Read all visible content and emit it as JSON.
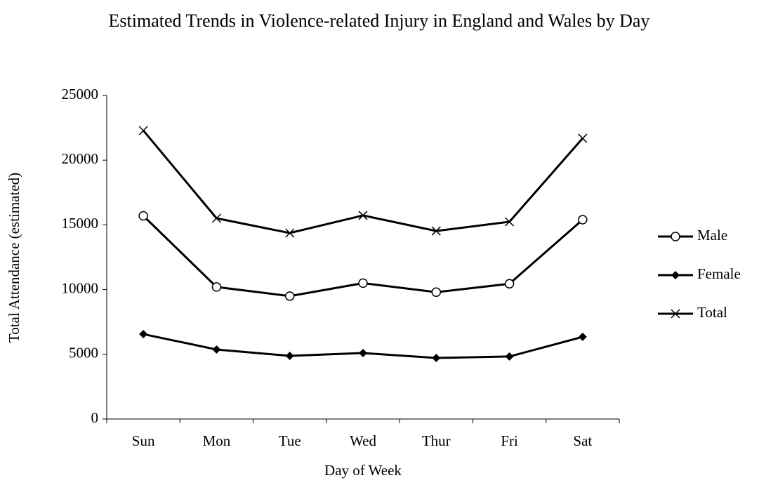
{
  "chart_data": {
    "type": "line",
    "title": "Estimated Trends in Violence-related Injury in England and Wales by Day",
    "x_label": "Day of Week",
    "y_label": "Total Attendance (estimated)",
    "categories": [
      "Sun",
      "Mon",
      "Tue",
      "Wed",
      "Thur",
      "Fri",
      "Sat"
    ],
    "series": [
      {
        "name": "Male",
        "color": "#000000",
        "marker": "circle",
        "values": [
          15700,
          10200,
          9500,
          10500,
          9800,
          10450,
          15400
        ]
      },
      {
        "name": "Female",
        "color": "#000000",
        "marker": "diamond",
        "values": [
          6560,
          5370,
          4880,
          5100,
          4720,
          4830,
          6350
        ]
      },
      {
        "name": "Total",
        "color": "#000000",
        "marker": "x",
        "values": [
          22290,
          15510,
          14370,
          15730,
          14530,
          15240,
          21690
        ]
      }
    ],
    "ylim": [
      0,
      25000
    ],
    "yticks": [
      0,
      5000,
      10000,
      15000,
      20000,
      25000
    ],
    "grid": false,
    "legend": "right"
  }
}
